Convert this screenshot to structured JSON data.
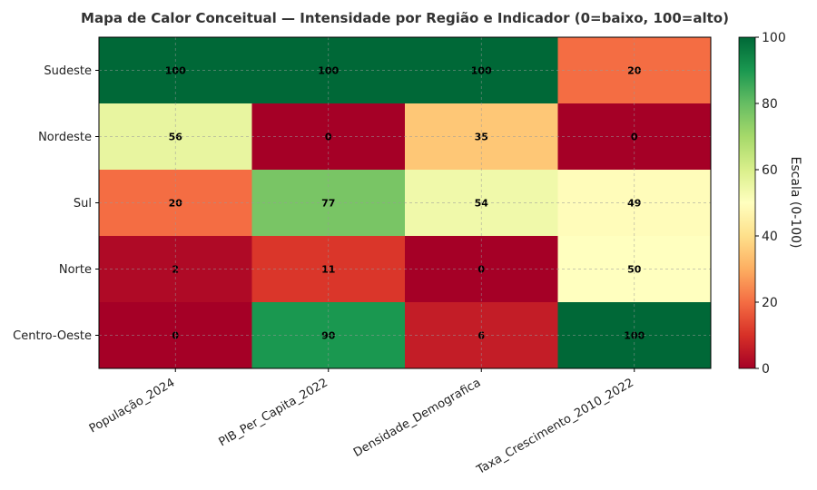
{
  "chart_data": {
    "type": "heatmap",
    "title": "Mapa de Calor Conceitual — Intensidade por Região e Indicador (0=baixo, 100=alto)",
    "rows": [
      "Sudeste",
      "Nordeste",
      "Sul",
      "Norte",
      "Centro-Oeste"
    ],
    "columns": [
      "População_2024",
      "PIB_Per_Capita_2022",
      "Densidade_Demografica",
      "Taxa_Crescimento_2010_2022"
    ],
    "values": [
      [
        100,
        100,
        100,
        20
      ],
      [
        56,
        0,
        35,
        0
      ],
      [
        20,
        77,
        54,
        49
      ],
      [
        2,
        11,
        0,
        50
      ],
      [
        0,
        90,
        6,
        100
      ]
    ],
    "colorbar": {
      "label": "Escala (0-100)",
      "range": [
        0,
        100
      ],
      "ticks": [
        0,
        20,
        40,
        60,
        80,
        100
      ],
      "colormap": "RdYlGn"
    },
    "grid": true
  }
}
